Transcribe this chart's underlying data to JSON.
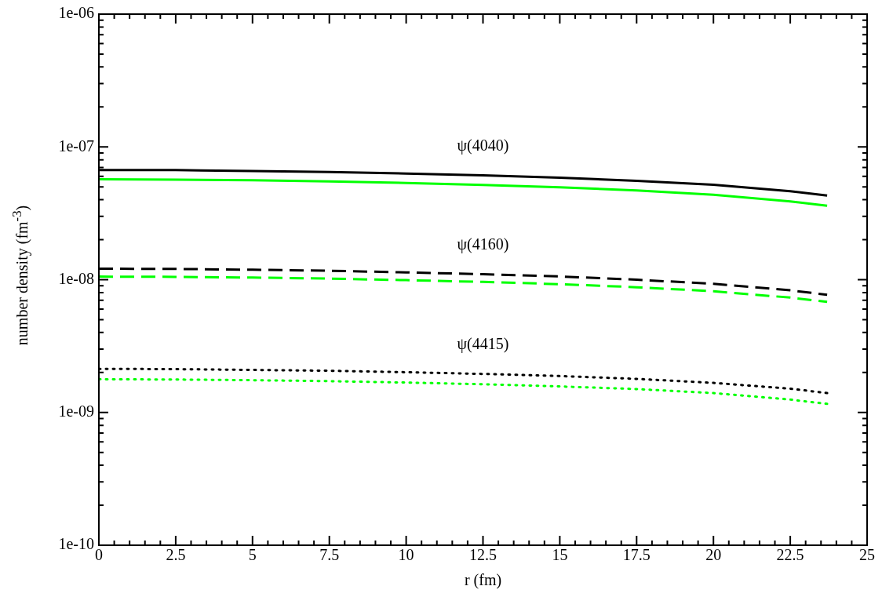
{
  "chart_data": {
    "type": "line",
    "xlabel": "r (fm)",
    "ylabel": "number density (fm$^{-3}$)",
    "x": [
      0,
      2.5,
      5,
      7.5,
      10,
      12.5,
      15,
      17.5,
      20,
      22.5,
      23.7
    ],
    "series": [
      {
        "color": "#000000",
        "line_style": "solid",
        "values": [
          6.7e-08,
          6.69e-08,
          6.58e-08,
          6.46e-08,
          6.3e-08,
          6.1e-08,
          5.86e-08,
          5.56e-08,
          5.18e-08,
          4.64e-08,
          4.3e-08
        ]
      },
      {
        "color": "#00ff00",
        "line_style": "solid",
        "values": [
          5.7e-08,
          5.67e-08,
          5.6e-08,
          5.49e-08,
          5.35e-08,
          5.17e-08,
          4.96e-08,
          4.7e-08,
          4.36e-08,
          3.89e-08,
          3.6e-08
        ]
      },
      {
        "color": "#000000",
        "line_style": "dashed",
        "values": [
          1.21e-08,
          1.205e-08,
          1.188e-08,
          1.167e-08,
          1.135e-08,
          1.1e-08,
          1.057e-08,
          1e-08,
          9.3e-09,
          8.31e-09,
          7.7e-09
        ]
      },
      {
        "color": "#00ff00",
        "line_style": "dashed",
        "values": [
          1.055e-08,
          1.05e-08,
          1.037e-08,
          1.018e-08,
          9.92e-09,
          9.62e-09,
          9.25e-09,
          8.77e-09,
          8.18e-09,
          7.33e-09,
          6.8e-09
        ]
      },
      {
        "color": "#000000",
        "line_style": "dotted",
        "values": [
          2.13e-09,
          2.12e-09,
          2.09e-09,
          2.06e-09,
          2.01e-09,
          1.95e-09,
          1.88e-09,
          1.79e-09,
          1.67e-09,
          1.51e-09,
          1.4e-09
        ]
      },
      {
        "color": "#00ff00",
        "line_style": "dotted",
        "values": [
          1.78e-09,
          1.77e-09,
          1.75e-09,
          1.72e-09,
          1.68e-09,
          1.63e-09,
          1.57e-09,
          1.5e-09,
          1.4e-09,
          1.25e-09,
          1.16e-09
        ]
      }
    ],
    "annotations": [
      "ψ(4040)",
      "ψ(4160)",
      "ψ(4415)"
    ],
    "log": "y",
    "grid": false,
    "legend": false,
    "marker": "none",
    "xlim": [
      0,
      25
    ],
    "xticks": [
      0,
      {
        "value": 0.5,
        "label": null
      },
      {
        "value": 1,
        "label": null
      },
      {
        "value": 1.5,
        "label": null
      },
      {
        "value": 2,
        "label": null
      },
      2.5,
      {
        "value": 3,
        "label": null
      },
      {
        "value": 3.5,
        "label": null
      },
      {
        "value": 4,
        "label": null
      },
      {
        "value": 4.5,
        "label": null
      },
      5,
      {
        "value": 5.5,
        "label": null
      },
      {
        "value": 6,
        "label": null
      },
      {
        "value": 6.5,
        "label": null
      },
      {
        "value": 7,
        "label": null
      },
      7.5,
      {
        "value": 8,
        "label": null
      },
      {
        "value": 8.5,
        "label": null
      },
      {
        "value": 9,
        "label": null
      },
      {
        "value": 9.5,
        "label": null
      },
      10,
      {
        "value": 10.5,
        "label": null
      },
      {
        "value": 11,
        "label": null
      },
      {
        "value": 11.5,
        "label": null
      },
      {
        "value": 12,
        "label": null
      },
      12.5,
      {
        "value": 13,
        "label": null
      },
      {
        "value": 13.5,
        "label": null
      },
      {
        "value": 14,
        "label": null
      },
      {
        "value": 14.5,
        "label": null
      },
      15,
      {
        "value": 15.5,
        "label": null
      },
      {
        "value": 16,
        "label": null
      },
      {
        "value": 16.5,
        "label": null
      },
      {
        "value": 17,
        "label": null
      },
      17.5,
      {
        "value": 18,
        "label": null
      },
      {
        "value": 18.5,
        "label": null
      },
      {
        "value": 19,
        "label": null
      },
      {
        "value": 19.5,
        "label": null
      },
      20,
      {
        "value": 20.5,
        "label": null
      },
      {
        "value": 21,
        "label": null
      },
      {
        "value": 21.5,
        "label": null
      },
      {
        "value": 22,
        "label": null
      },
      22.5,
      {
        "value": 23,
        "label": null
      },
      {
        "value": 23.5,
        "label": null
      },
      {
        "value": 24,
        "label": null
      },
      {
        "value": 24.5,
        "label": null
      },
      25
    ],
    "ylim": [
      1e-10,
      1e-06
    ],
    "yticks": [
      {
        "value": 1e-10,
        "label": "1e-10"
      },
      {
        "value": 2e-10,
        "label": null
      },
      {
        "value": 3e-10,
        "label": null
      },
      {
        "value": 4e-10,
        "label": null
      },
      {
        "value": 5e-10,
        "label": null
      },
      {
        "value": 6e-10,
        "label": null
      },
      {
        "value": 7e-10,
        "label": null
      },
      {
        "value": 8e-10,
        "label": null
      },
      {
        "value": 9e-10,
        "label": null
      },
      {
        "value": 1e-09,
        "label": "1e-09"
      },
      {
        "value": 2e-09,
        "label": null
      },
      {
        "value": 3e-09,
        "label": null
      },
      {
        "value": 4e-09,
        "label": null
      },
      {
        "value": 5e-09,
        "label": null
      },
      {
        "value": 6e-09,
        "label": null
      },
      {
        "value": 7e-09,
        "label": null
      },
      {
        "value": 8e-09,
        "label": null
      },
      {
        "value": 9e-09,
        "label": null
      },
      {
        "value": 1e-08,
        "label": "1e-08"
      },
      {
        "value": 2e-08,
        "label": null
      },
      {
        "value": 3e-08,
        "label": null
      },
      {
        "value": 4e-08,
        "label": null
      },
      {
        "value": 5e-08,
        "label": null
      },
      {
        "value": 6e-08,
        "label": null
      },
      {
        "value": 7e-08,
        "label": null
      },
      {
        "value": 8e-08,
        "label": null
      },
      {
        "value": 9e-08,
        "label": null
      },
      {
        "value": 1e-07,
        "label": "1e-07"
      },
      {
        "value": 2e-07,
        "label": null
      },
      {
        "value": 3e-07,
        "label": null
      },
      {
        "value": 4e-07,
        "label": null
      },
      {
        "value": 5e-07,
        "label": null
      },
      {
        "value": 6e-07,
        "label": null
      },
      {
        "value": 7e-07,
        "label": null
      },
      {
        "value": 8e-07,
        "label": null
      },
      {
        "value": 9e-07,
        "label": null
      },
      {
        "value": 1e-06,
        "label": "1e-06"
      }
    ]
  }
}
